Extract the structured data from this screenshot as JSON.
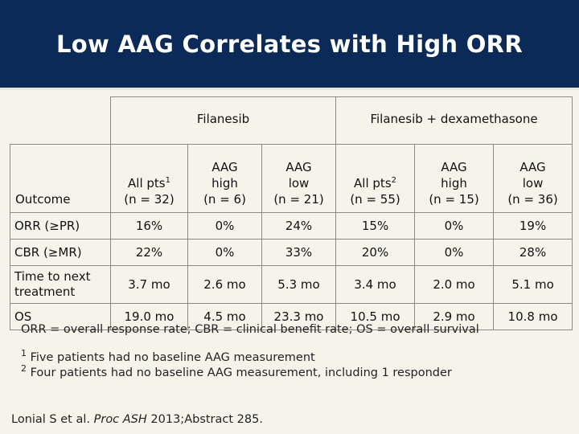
{
  "title": "Low AAG Correlates with High ORR",
  "table": {
    "group1": "Filanesib",
    "group2": "Filanesib + dexamethasone",
    "outcome_label": "Outcome",
    "columns": [
      {
        "line1": "All pts",
        "sup": "1",
        "line2": "(n = 32)"
      },
      {
        "line1": "AAG",
        "line1b": "high",
        "line2": "(n = 6)"
      },
      {
        "line1": "AAG",
        "line1b": "low",
        "line2": "(n = 21)"
      },
      {
        "line1": "All pts",
        "sup": "2",
        "line2": "(n = 55)"
      },
      {
        "line1": "AAG",
        "line1b": "high",
        "line2": "(n = 15)"
      },
      {
        "line1": "AAG",
        "line1b": "low",
        "line2": "(n = 36)"
      }
    ],
    "rows": [
      {
        "label": "ORR (≥PR)",
        "values": [
          "16%",
          "0%",
          "24%",
          "15%",
          "0%",
          "19%"
        ]
      },
      {
        "label": "CBR (≥MR)",
        "values": [
          "22%",
          "0%",
          "33%",
          "20%",
          "0%",
          "28%"
        ]
      },
      {
        "label": "Time to next treatment",
        "values": [
          "3.7 mo",
          "2.6 mo",
          "5.3 mo",
          "3.4 mo",
          "2.0 mo",
          "5.1 mo"
        ]
      },
      {
        "label": "OS",
        "values": [
          "19.0 mo",
          "4.5 mo",
          "23.3 mo",
          "10.5 mo",
          "2.9 mo",
          "10.8 mo"
        ]
      }
    ]
  },
  "footnotes": {
    "abbrev": "ORR = overall response rate; CBR = clinical benefit rate; OS = overall survival",
    "note1_mark": "1",
    "note1": "Five patients had no baseline AAG measurement",
    "note2_mark": "2",
    "note2": "Four patients had no baseline AAG measurement, including 1 responder"
  },
  "citation": {
    "authors": "Lonial S et al. ",
    "journal": "Proc ASH",
    "rest": " 2013;Abstract 285."
  }
}
